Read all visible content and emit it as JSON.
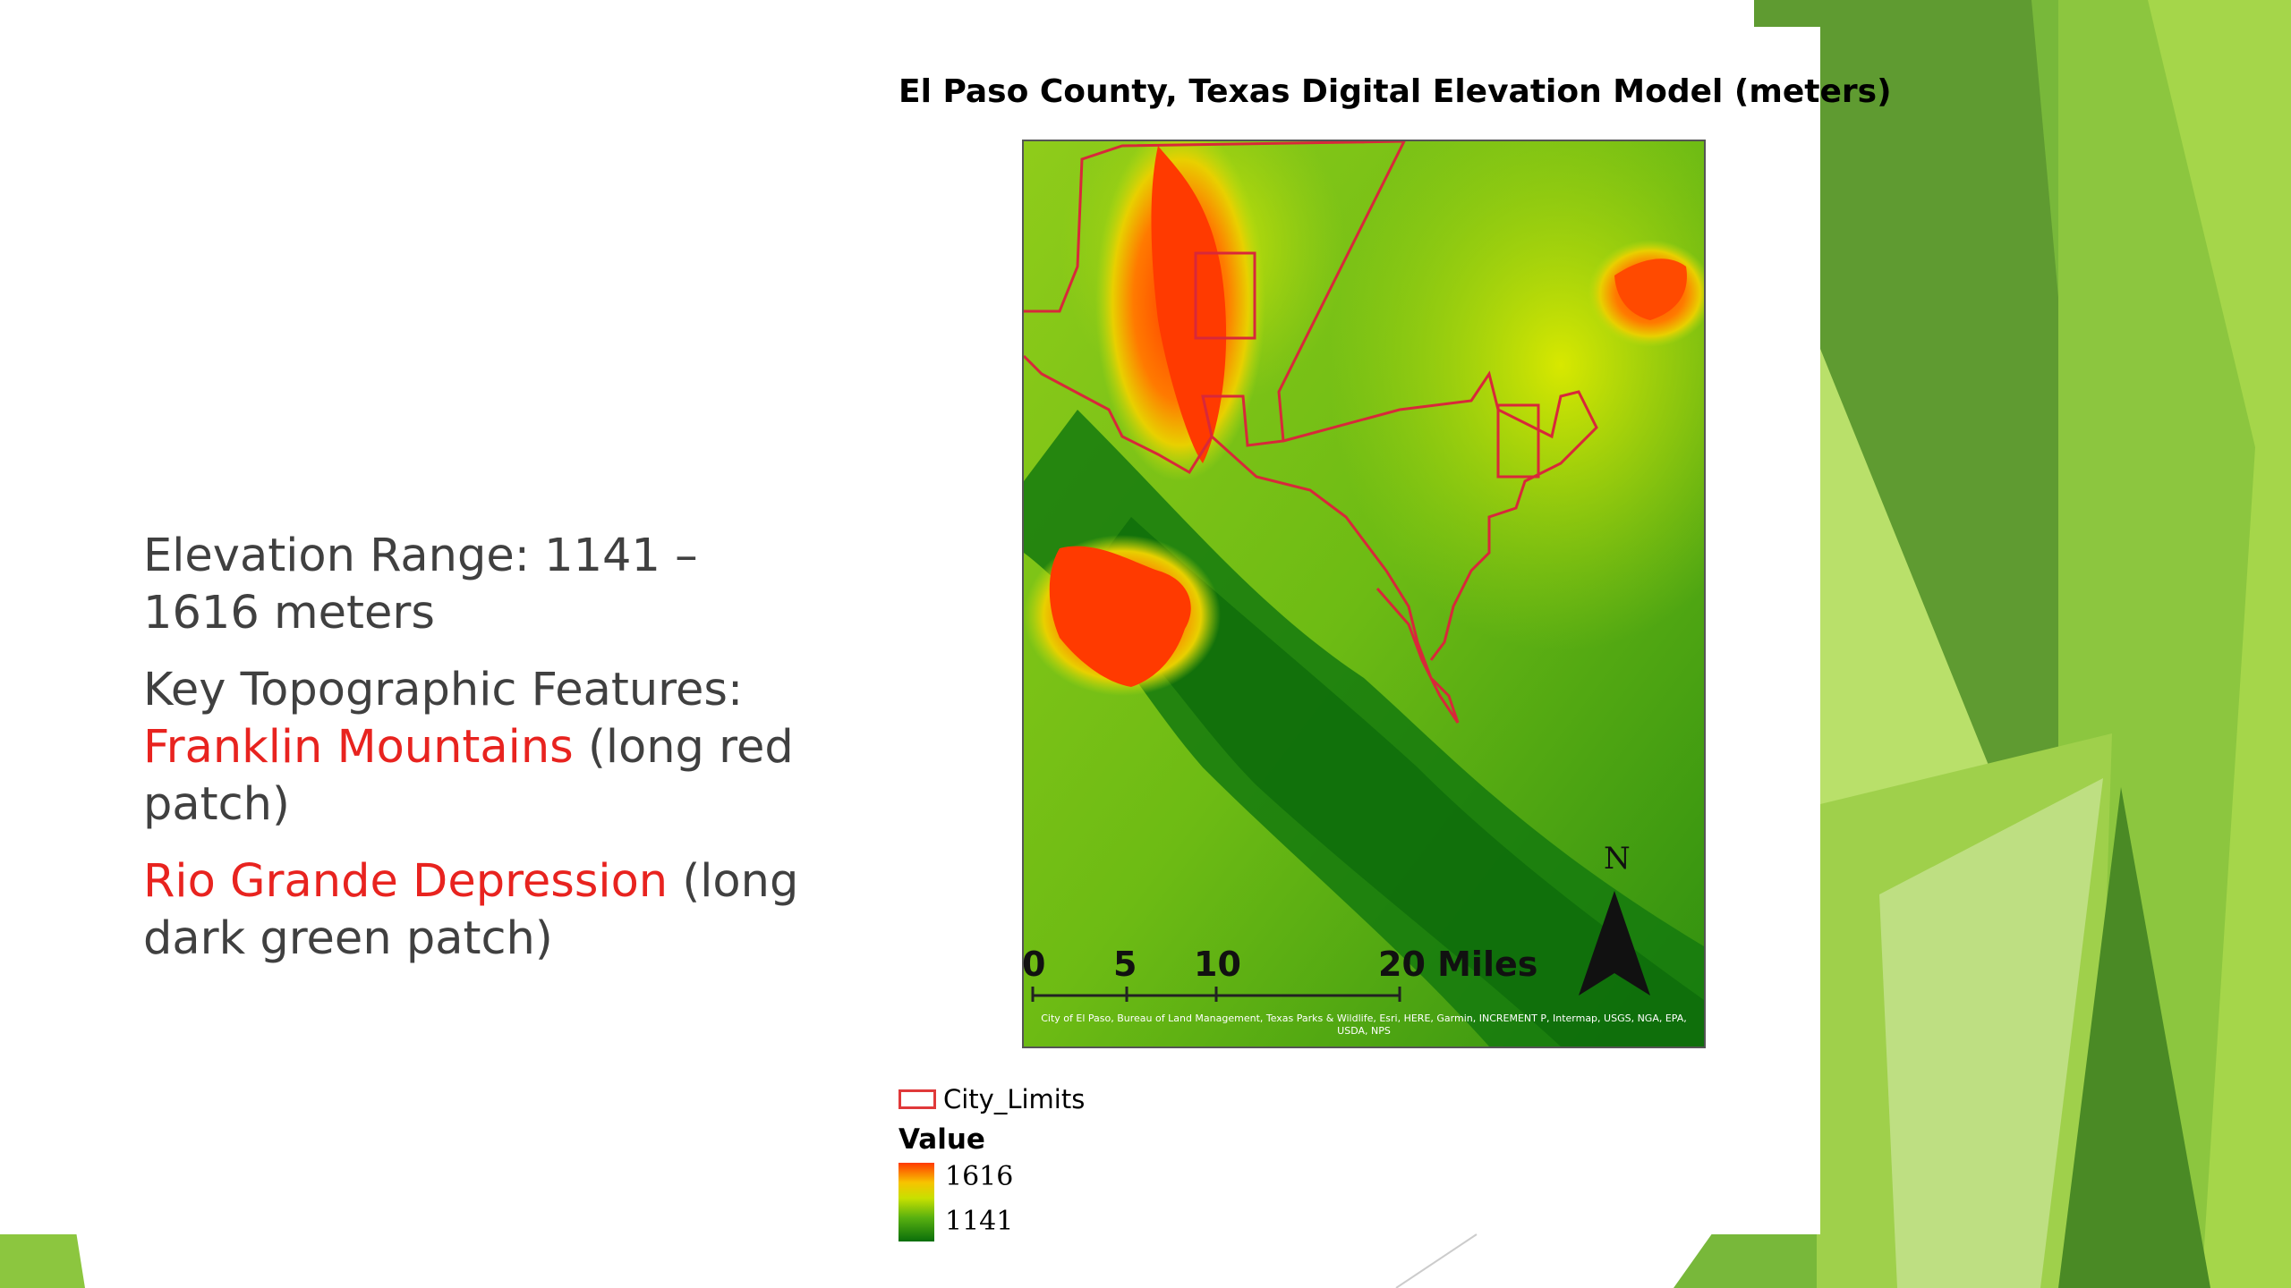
{
  "bullets": {
    "item1": "Elevation Range: 1141 – 1616 meters",
    "item2_prefix": "Key Topographic Features: ",
    "item2_highlight": "Franklin Mountains",
    "item2_suffix": " (long red patch)",
    "item3_highlight": "Rio Grande Depression",
    "item3_suffix": " (long dark green patch)"
  },
  "map": {
    "title": "El Paso County, Texas Digital Elevation Model (meters)",
    "scale_labels": [
      "0",
      "5",
      "10",
      "20 Miles"
    ],
    "north_label": "N",
    "attribution": "City of El Paso, Bureau of Land Management, Texas Parks & Wildlife, Esri, HERE, Garmin, INCREMENT P, Intermap, USGS, NGA, EPA, USDA, NPS"
  },
  "legend": {
    "city_limits_label": "City_Limits",
    "value_heading": "Value",
    "high_value": "1616",
    "low_value": "1141"
  },
  "colors": {
    "highlight_text": "#e8231f",
    "body_text": "#404040",
    "theme_green_light": "#9bd13a",
    "theme_green_dark": "#5e9a2e",
    "city_limits_outline": "#e0393a"
  }
}
